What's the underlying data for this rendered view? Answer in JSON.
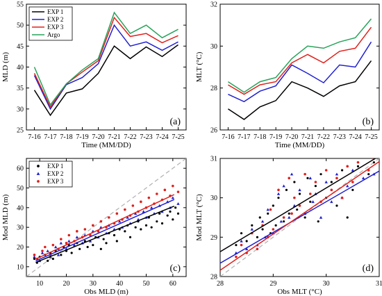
{
  "chart_data": [
    {
      "id": "a",
      "type": "line",
      "panel_label": "(a)",
      "xlabel": "Time (MM/DD)",
      "ylabel": "MLD (m)",
      "categories": [
        "7-16",
        "7-17",
        "7-18",
        "7-19",
        "7-20",
        "7-21",
        "7-22",
        "7-23",
        "7-24",
        "7-25"
      ],
      "ylim": [
        25,
        55
      ],
      "yticks": [
        25,
        30,
        35,
        40,
        45,
        50,
        55
      ],
      "legend_position": "top-left",
      "series": [
        {
          "name": "EXP 1",
          "color": "#000000",
          "values": [
            34.5,
            28.5,
            33.8,
            34.8,
            38.5,
            45.0,
            42.0,
            44.8,
            42.5,
            45.3
          ]
        },
        {
          "name": "EXP 2",
          "color": "#1f1fd0",
          "values": [
            38.0,
            30.0,
            35.8,
            37.5,
            40.8,
            50.0,
            45.0,
            46.0,
            44.0,
            46.0
          ]
        },
        {
          "name": "EXP 3",
          "color": "#e0201b",
          "values": [
            38.5,
            30.5,
            36.0,
            38.8,
            41.5,
            51.8,
            47.3,
            48.0,
            45.8,
            47.5
          ]
        },
        {
          "name": "Argo",
          "color": "#27a35a",
          "values": [
            40.0,
            31.0,
            36.0,
            39.3,
            42.0,
            53.0,
            48.0,
            50.0,
            47.0,
            49.0
          ]
        }
      ]
    },
    {
      "id": "b",
      "type": "line",
      "panel_label": "(b)",
      "xlabel": "Time (MM/DD)",
      "ylabel": "MLT (°C)",
      "categories": [
        "7-16",
        "7-17",
        "7-18",
        "7-19",
        "7-20",
        "7-21",
        "7-22",
        "7-23",
        "7-24",
        "7-25"
      ],
      "ylim": [
        26,
        32
      ],
      "yticks": [
        26,
        28,
        30,
        32
      ],
      "series": [
        {
          "name": "EXP 1",
          "color": "#000000",
          "values": [
            27.0,
            26.5,
            27.1,
            27.4,
            28.3,
            28.0,
            27.6,
            28.1,
            28.3,
            29.3
          ]
        },
        {
          "name": "EXP 2",
          "color": "#1f1fd0",
          "values": [
            27.7,
            27.35,
            27.85,
            28.1,
            29.1,
            28.7,
            28.25,
            29.1,
            29.0,
            30.2
          ]
        },
        {
          "name": "EXP 3",
          "color": "#e0201b",
          "values": [
            28.15,
            27.7,
            28.15,
            28.3,
            29.2,
            29.6,
            29.2,
            29.75,
            29.9,
            30.9
          ]
        },
        {
          "name": "Argo",
          "color": "#27a35a",
          "values": [
            28.3,
            27.8,
            28.3,
            28.5,
            29.4,
            30.0,
            29.9,
            30.2,
            30.4,
            31.3
          ]
        }
      ]
    },
    {
      "id": "c",
      "type": "scatter",
      "panel_label": "(c)",
      "xlabel": "Obs MLD (m)",
      "ylabel": "Mod MLD (m)",
      "xlim": [
        5,
        65
      ],
      "ylim": [
        5,
        65
      ],
      "xticks": [
        10,
        20,
        30,
        40,
        50,
        60
      ],
      "yticks": [
        10,
        20,
        30,
        40,
        50,
        60
      ],
      "legend_position": "top-left",
      "identity_line": true,
      "series": [
        {
          "name": "EXP 1",
          "color": "#000000",
          "marker": "dot",
          "fit": [
            0.55,
            7.5
          ],
          "points": [
            [
              8,
              14
            ],
            [
              9,
              12
            ],
            [
              10,
              15
            ],
            [
              12,
              16
            ],
            [
              13,
              13
            ],
            [
              14,
              17
            ],
            [
              15,
              14
            ],
            [
              16,
              18
            ],
            [
              18,
              16
            ],
            [
              19,
              20
            ],
            [
              20,
              18
            ],
            [
              21,
              21
            ],
            [
              22,
              17
            ],
            [
              24,
              22
            ],
            [
              25,
              19
            ],
            [
              27,
              23
            ],
            [
              28,
              20
            ],
            [
              30,
              21
            ],
            [
              31,
              25
            ],
            [
              33,
              19
            ],
            [
              34,
              24
            ],
            [
              35,
              22
            ],
            [
              36,
              27
            ],
            [
              38,
              26
            ],
            [
              39,
              23
            ],
            [
              40,
              29
            ],
            [
              42,
              28
            ],
            [
              43,
              31
            ],
            [
              44,
              25
            ],
            [
              46,
              30
            ],
            [
              47,
              33
            ],
            [
              48,
              29
            ],
            [
              50,
              31
            ],
            [
              51,
              35
            ],
            [
              52,
              30
            ],
            [
              54,
              33
            ],
            [
              55,
              37
            ],
            [
              56,
              32
            ],
            [
              58,
              36
            ],
            [
              59,
              38
            ],
            [
              60,
              34
            ],
            [
              61,
              40
            ],
            [
              62,
              37
            ]
          ]
        },
        {
          "name": "EXP 2",
          "color": "#1f1fd0",
          "marker": "triangle",
          "fit": [
            0.6,
            7.8
          ],
          "points": [
            [
              8,
              15
            ],
            [
              10,
              13
            ],
            [
              11,
              17
            ],
            [
              13,
              18
            ],
            [
              14,
              15
            ],
            [
              16,
              20
            ],
            [
              17,
              16
            ],
            [
              18,
              22
            ],
            [
              20,
              19
            ],
            [
              21,
              23
            ],
            [
              23,
              21
            ],
            [
              24,
              25
            ],
            [
              26,
              22
            ],
            [
              27,
              26
            ],
            [
              29,
              23
            ],
            [
              30,
              28
            ],
            [
              32,
              25
            ],
            [
              33,
              30
            ],
            [
              35,
              27
            ],
            [
              36,
              31
            ],
            [
              38,
              29
            ],
            [
              40,
              33
            ],
            [
              41,
              30
            ],
            [
              43,
              35
            ],
            [
              44,
              32
            ],
            [
              46,
              37
            ],
            [
              47,
              34
            ],
            [
              49,
              38
            ],
            [
              50,
              35
            ],
            [
              52,
              40
            ],
            [
              53,
              37
            ],
            [
              55,
              41
            ],
            [
              56,
              38
            ],
            [
              58,
              43
            ],
            [
              59,
              40
            ],
            [
              60,
              45
            ],
            [
              62,
              42
            ]
          ]
        },
        {
          "name": "EXP 3",
          "color": "#e0201b",
          "marker": "square",
          "fit": [
            0.63,
            8.5
          ],
          "points": [
            [
              8,
              16
            ],
            [
              9,
              14
            ],
            [
              11,
              18
            ],
            [
              12,
              20
            ],
            [
              14,
              16
            ],
            [
              15,
              21
            ],
            [
              17,
              19
            ],
            [
              18,
              24
            ],
            [
              20,
              22
            ],
            [
              21,
              26
            ],
            [
              23,
              23
            ],
            [
              24,
              28
            ],
            [
              26,
              25
            ],
            [
              27,
              29
            ],
            [
              29,
              26
            ],
            [
              30,
              31
            ],
            [
              32,
              28
            ],
            [
              33,
              33
            ],
            [
              35,
              30
            ],
            [
              36,
              35
            ],
            [
              38,
              32
            ],
            [
              39,
              37
            ],
            [
              41,
              34
            ],
            [
              42,
              39
            ],
            [
              44,
              36
            ],
            [
              45,
              41
            ],
            [
              47,
              38
            ],
            [
              48,
              43
            ],
            [
              50,
              40
            ],
            [
              51,
              45
            ],
            [
              53,
              42
            ],
            [
              54,
              47
            ],
            [
              56,
              44
            ],
            [
              57,
              49
            ],
            [
              59,
              46
            ],
            [
              60,
              51
            ],
            [
              62,
              48
            ]
          ]
        }
      ]
    },
    {
      "id": "d",
      "type": "scatter",
      "panel_label": "(d)",
      "xlabel": "Obs MLT (°C)",
      "ylabel": "Mod MLT (°C)",
      "xlim": [
        28,
        31
      ],
      "ylim": [
        28,
        31
      ],
      "xticks": [
        28,
        29,
        30,
        31
      ],
      "yticks": [
        28,
        29,
        30,
        31
      ],
      "identity_line": true,
      "series": [
        {
          "name": "EXP 1",
          "color": "#000000",
          "marker": "dot",
          "fit": [
            0.81,
            5.95
          ],
          "points": [
            [
              28.3,
              28.8
            ],
            [
              28.4,
              29.1
            ],
            [
              28.5,
              28.9
            ],
            [
              28.6,
              29.3
            ],
            [
              28.7,
              29.0
            ],
            [
              28.75,
              29.5
            ],
            [
              28.8,
              29.2
            ],
            [
              28.9,
              29.6
            ],
            [
              28.95,
              29.1
            ],
            [
              29.0,
              29.8
            ],
            [
              29.05,
              29.3
            ],
            [
              29.1,
              30.0
            ],
            [
              29.2,
              29.4
            ],
            [
              29.25,
              30.2
            ],
            [
              29.3,
              29.6
            ],
            [
              29.4,
              30.4
            ],
            [
              29.45,
              29.7
            ],
            [
              29.5,
              30.1
            ],
            [
              29.6,
              29.5
            ],
            [
              29.65,
              30.5
            ],
            [
              29.7,
              29.9
            ],
            [
              29.8,
              30.3
            ],
            [
              29.85,
              29.4
            ],
            [
              29.9,
              30.6
            ],
            [
              30.0,
              30.0
            ],
            [
              30.1,
              30.4
            ],
            [
              30.2,
              29.8
            ],
            [
              30.3,
              30.7
            ],
            [
              30.4,
              29.5
            ],
            [
              30.5,
              30.2
            ],
            [
              30.6,
              30.8
            ],
            [
              30.8,
              30.6
            ],
            [
              30.9,
              30.9
            ]
          ]
        },
        {
          "name": "EXP 2",
          "color": "#1f1fd0",
          "marker": "triangle",
          "fit": [
            0.78,
            6.5
          ],
          "points": [
            [
              28.3,
              28.6
            ],
            [
              28.4,
              28.9
            ],
            [
              28.5,
              28.7
            ],
            [
              28.6,
              29.2
            ],
            [
              28.7,
              28.8
            ],
            [
              28.8,
              29.4
            ],
            [
              28.85,
              29.0
            ],
            [
              28.9,
              29.7
            ],
            [
              29.0,
              29.1
            ],
            [
              29.1,
              30.1
            ],
            [
              29.15,
              29.4
            ],
            [
              29.2,
              30.3
            ],
            [
              29.3,
              29.5
            ],
            [
              29.35,
              30.6
            ],
            [
              29.4,
              29.8
            ],
            [
              29.5,
              30.2
            ],
            [
              29.6,
              29.6
            ],
            [
              29.7,
              30.5
            ],
            [
              29.75,
              29.9
            ],
            [
              29.8,
              30.1
            ],
            [
              29.9,
              29.5
            ],
            [
              30.0,
              30.4
            ],
            [
              30.1,
              29.9
            ],
            [
              30.2,
              30.6
            ],
            [
              30.3,
              30.0
            ],
            [
              30.4,
              30.3
            ],
            [
              30.5,
              30.7
            ],
            [
              30.7,
              30.5
            ],
            [
              30.9,
              30.6
            ]
          ]
        },
        {
          "name": "EXP 3",
          "color": "#e0201b",
          "marker": "square",
          "fit": [
            0.92,
            2.4
          ],
          "points": [
            [
              28.3,
              28.5
            ],
            [
              28.4,
              28.8
            ],
            [
              28.5,
              28.6
            ],
            [
              28.6,
              29.1
            ],
            [
              28.7,
              28.7
            ],
            [
              28.8,
              29.3
            ],
            [
              28.9,
              29.0
            ],
            [
              28.95,
              29.7
            ],
            [
              29.0,
              29.2
            ],
            [
              29.1,
              30.2
            ],
            [
              29.2,
              29.5
            ],
            [
              29.3,
              30.5
            ],
            [
              29.35,
              29.6
            ],
            [
              29.4,
              30.0
            ],
            [
              29.5,
              29.8
            ],
            [
              29.6,
              30.6
            ],
            [
              29.7,
              30.1
            ],
            [
              29.8,
              30.4
            ],
            [
              29.9,
              29.9
            ],
            [
              30.0,
              30.7
            ],
            [
              30.1,
              30.2
            ],
            [
              30.2,
              30.5
            ],
            [
              30.3,
              30.0
            ],
            [
              30.4,
              30.8
            ],
            [
              30.5,
              30.4
            ],
            [
              30.6,
              30.9
            ],
            [
              30.8,
              30.7
            ],
            [
              30.9,
              31.0
            ]
          ]
        }
      ]
    }
  ]
}
